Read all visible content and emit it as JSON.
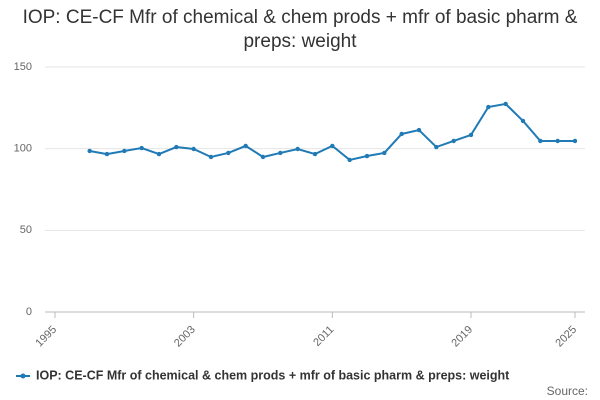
{
  "chart_data": {
    "type": "line",
    "title": "IOP: CE-CF Mfr of chemical & chem prods + mfr of basic pharm & preps: weight",
    "x": [
      1997,
      1998,
      1999,
      2000,
      2001,
      2002,
      2003,
      2004,
      2005,
      2006,
      2007,
      2008,
      2009,
      2010,
      2011,
      2012,
      2013,
      2014,
      2015,
      2016,
      2017,
      2018,
      2019,
      2020,
      2021,
      2022,
      2023,
      2024,
      2025
    ],
    "series": [
      {
        "name": "IOP: CE-CF Mfr of chemical & chem prods + mfr of basic pharm & preps: weight",
        "color": "#1f7ab5",
        "values": [
          98.6,
          96.7,
          98.6,
          100.4,
          96.7,
          101,
          99.8,
          94.9,
          97.4,
          101.7,
          94.9,
          97.4,
          99.8,
          96.7,
          101.7,
          93.1,
          95.5,
          97.4,
          109,
          111.4,
          101,
          104.7,
          108.4,
          125.5,
          127.4,
          117,
          104.7,
          104.7,
          104.7
        ]
      }
    ],
    "xlim": [
      1995,
      2025
    ],
    "xticks": [
      1995,
      2003,
      2011,
      2019,
      2025
    ],
    "ylim": [
      0,
      150
    ],
    "yticks": [
      0,
      50,
      100,
      150
    ],
    "grid": true,
    "source": "Source:"
  }
}
